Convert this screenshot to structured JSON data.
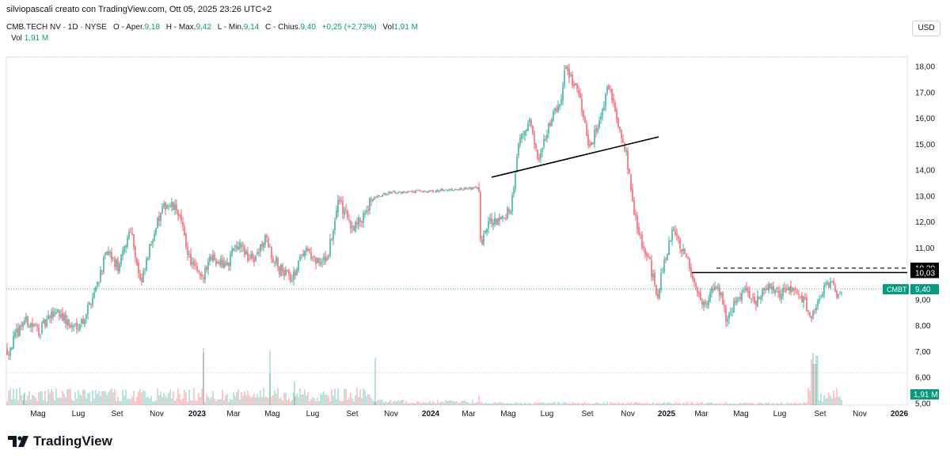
{
  "header": {
    "credit": "silviopascali creato con TradingView.com, Ott 05, 2025 23:26 UTC+2",
    "symbol_line": "CMB.TECH NV · 1D · NYSE",
    "open_label": "O - Aper.",
    "open": "9,18",
    "high_label": "H - Max.",
    "high": "9,42",
    "low_label": "L - Min.",
    "low": "9,14",
    "close_label": "C - Chius.",
    "close": "9,40",
    "change": "+0,25 (+2,73%)",
    "vol_label": "Vol",
    "vol": "1,91 M"
  },
  "volume_legend": {
    "label": "Vol",
    "value": "1,91 M"
  },
  "currency": "USD",
  "brand": "TradingView",
  "colors": {
    "up": "#089981",
    "down": "#f23645",
    "line": "#000000",
    "grid": "#f0f3fa"
  },
  "chart_data": {
    "type": "candlestick",
    "x_labels": [
      "Mag",
      "Lug",
      "Set",
      "Nov",
      "2023",
      "Mar",
      "Mag",
      "Lug",
      "Set",
      "Nov",
      "2024",
      "Mar",
      "Mag",
      "Lug",
      "Set",
      "Nov",
      "2025",
      "Mar",
      "Mag",
      "Lug",
      "Set",
      "Nov",
      "2026"
    ],
    "y_ticks": [
      "18,00",
      "17,00",
      "16,00",
      "15,00",
      "14,00",
      "13,00",
      "12,00",
      "11,00",
      "10,00",
      "9,00",
      "8,00",
      "7,00",
      "6,00",
      "5,00"
    ],
    "ylim": [
      5,
      18.5
    ],
    "price_path": [
      [
        0,
        7.2
      ],
      [
        10,
        7.0
      ],
      [
        30,
        8.2
      ],
      [
        50,
        7.8
      ],
      [
        72,
        8.6
      ],
      [
        90,
        7.9
      ],
      [
        105,
        8.2
      ],
      [
        118,
        9.2
      ],
      [
        135,
        10.8
      ],
      [
        150,
        10.2
      ],
      [
        165,
        11.8
      ],
      [
        178,
        9.5
      ],
      [
        195,
        11.7
      ],
      [
        210,
        12.7
      ],
      [
        225,
        12.4
      ],
      [
        240,
        10.5
      ],
      [
        255,
        9.7
      ],
      [
        268,
        10.7
      ],
      [
        285,
        10.2
      ],
      [
        300,
        11.2
      ],
      [
        318,
        10.5
      ],
      [
        335,
        11.3
      ],
      [
        352,
        10.2
      ],
      [
        370,
        9.8
      ],
      [
        385,
        11.0
      ],
      [
        400,
        10.4
      ],
      [
        413,
        10.5
      ],
      [
        428,
        12.8
      ],
      [
        445,
        11.8
      ],
      [
        455,
        12.0
      ],
      [
        468,
        12.8
      ],
      [
        472,
        12.9
      ],
      [
        490,
        13.1
      ],
      [
        520,
        13.15
      ],
      [
        560,
        13.2
      ],
      [
        605,
        13.3
      ],
      [
        607,
        11.2
      ],
      [
        618,
        12.0
      ],
      [
        630,
        12.1
      ],
      [
        645,
        12.4
      ],
      [
        655,
        15.0
      ],
      [
        670,
        15.8
      ],
      [
        680,
        14.2
      ],
      [
        690,
        15.3
      ],
      [
        700,
        16.2
      ],
      [
        710,
        16.8
      ],
      [
        714,
        18.2
      ],
      [
        722,
        17.5
      ],
      [
        732,
        16.8
      ],
      [
        745,
        14.8
      ],
      [
        755,
        15.8
      ],
      [
        765,
        16.8
      ],
      [
        770,
        17.4
      ],
      [
        780,
        15.8
      ],
      [
        790,
        14.8
      ],
      [
        800,
        12.5
      ],
      [
        812,
        11.0
      ],
      [
        820,
        10.5
      ],
      [
        830,
        9.1
      ],
      [
        840,
        10.5
      ],
      [
        850,
        11.6
      ],
      [
        865,
        10.8
      ],
      [
        880,
        9.4
      ],
      [
        890,
        8.7
      ],
      [
        900,
        9.6
      ],
      [
        910,
        9.2
      ],
      [
        918,
        8.2
      ],
      [
        928,
        8.9
      ],
      [
        940,
        9.4
      ],
      [
        955,
        8.9
      ],
      [
        970,
        9.5
      ],
      [
        985,
        9.2
      ],
      [
        1000,
        9.35
      ],
      [
        1015,
        9.0
      ],
      [
        1025,
        8.3
      ],
      [
        1032,
        8.7
      ],
      [
        1040,
        9.4
      ],
      [
        1050,
        9.7
      ],
      [
        1057,
        9.2
      ],
      [
        1063,
        9.4
      ]
    ],
    "last_price": 9.4,
    "last_price_label": "9,40",
    "last_price_ticker": "CMBT",
    "level_solid": 10.03,
    "level_solid_label": "10,03",
    "level_dashed": 10.2,
    "level_dashed_label": "10,20",
    "volume_last_label": "1,91 M",
    "trendline": {
      "from": [
        "2024-Apr",
        13.7
      ],
      "to": [
        "2024-Nov",
        15.3
      ]
    }
  }
}
